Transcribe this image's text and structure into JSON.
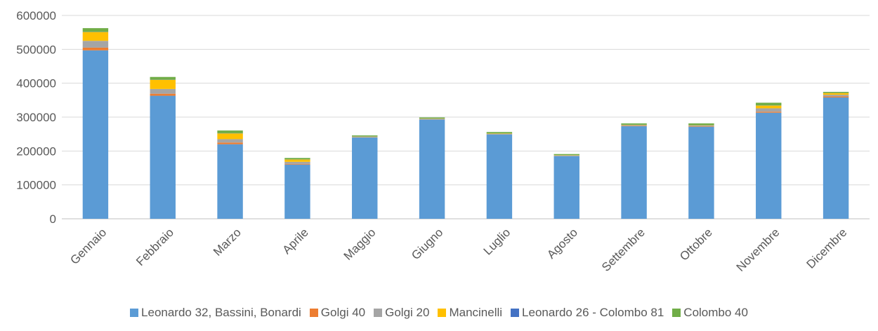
{
  "chart_data": {
    "type": "bar",
    "stacked": true,
    "title": "",
    "xlabel": "",
    "ylabel": "",
    "ylim": [
      0,
      600000
    ],
    "yticks": [
      "0",
      "100000",
      "200000",
      "300000",
      "400000",
      "500000",
      "600000"
    ],
    "grid": true,
    "legend_position": "bottom",
    "categories": [
      "Gennaio",
      "Febbraio",
      "Marzo",
      "Aprile",
      "Maggio",
      "Giugno",
      "Luglio",
      "Agosto",
      "Settembre",
      "Ottobre",
      "Novembre",
      "Dicembre"
    ],
    "series": [
      {
        "name": "Leonardo 32, Bassini, Bonardi",
        "color": "#5B9BD5",
        "values": [
          497000,
          363000,
          220000,
          160000,
          240000,
          293000,
          249000,
          185000,
          273000,
          271000,
          313000,
          358000
        ]
      },
      {
        "name": "Golgi 40",
        "color": "#ED7D31",
        "values": [
          8000,
          6000,
          5000,
          2000,
          500,
          500,
          500,
          500,
          1000,
          1000,
          3000,
          3000
        ]
      },
      {
        "name": "Golgi 20",
        "color": "#A5A5A5",
        "values": [
          20000,
          14000,
          10000,
          6000,
          1000,
          1000,
          1000,
          1000,
          2000,
          3000,
          10000,
          5000
        ]
      },
      {
        "name": "Mancinelli",
        "color": "#FFC000",
        "values": [
          26000,
          27000,
          17000,
          7000,
          1000,
          1000,
          1000,
          1000,
          1000,
          1000,
          8000,
          5000
        ]
      },
      {
        "name": "Leonardo 26 - Colombo 81",
        "color": "#4472C4",
        "values": [
          500,
          500,
          500,
          500,
          500,
          500,
          500,
          500,
          500,
          500,
          500,
          500
        ]
      },
      {
        "name": "Colombo 40",
        "color": "#70AD47",
        "values": [
          11000,
          8000,
          8000,
          4000,
          3000,
          3000,
          4000,
          3000,
          4000,
          5000,
          8000,
          3000
        ]
      }
    ]
  }
}
